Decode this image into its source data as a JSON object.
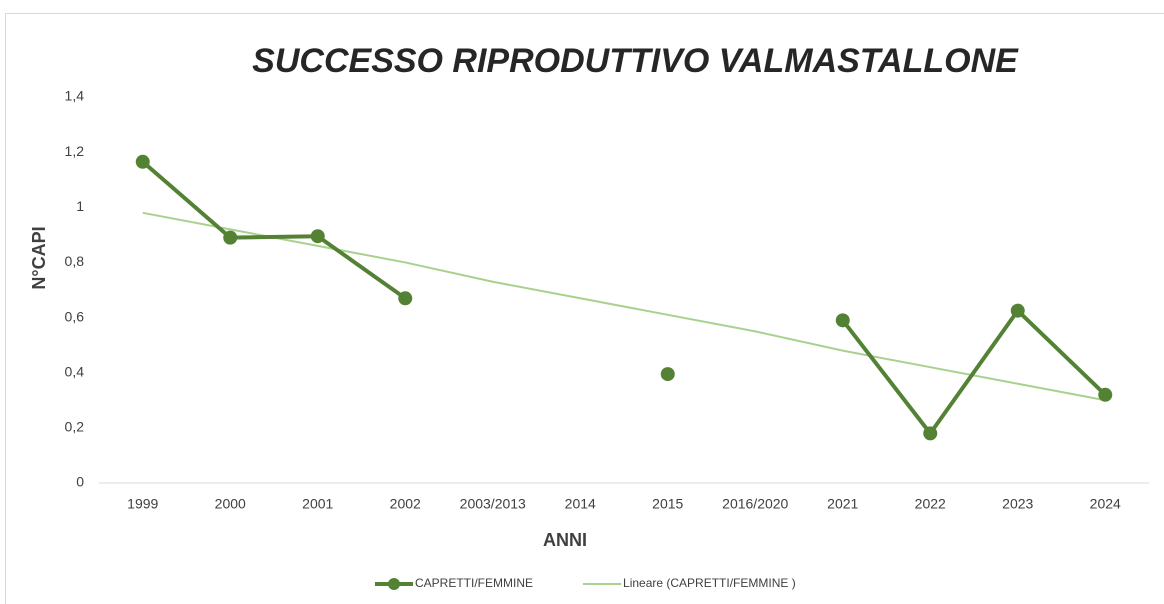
{
  "chart_data": {
    "type": "line",
    "title": "SUCCESSO RIPRODUTTIVO VALMASTALLONE",
    "x_label": "ANNI",
    "y_label": "N°CAPI",
    "categories": [
      "1999",
      "2000",
      "2001",
      "2002",
      "2003/2013",
      "2014",
      "2015",
      "2016/2020",
      "2021",
      "2022",
      "2023",
      "2024"
    ],
    "series": [
      {
        "name": "CAPRETTI/FEMMINE",
        "color": "#548235",
        "markers": true,
        "line_width": 4,
        "values": [
          1.165,
          0.89,
          0.895,
          0.67,
          null,
          null,
          0.395,
          null,
          0.59,
          0.18,
          0.625,
          0.32
        ]
      },
      {
        "name": "Lineare (CAPRETTI/FEMMINE )",
        "color": "#a9d18e",
        "markers": false,
        "line_width": 2,
        "values": [
          0.98,
          0.92,
          0.86,
          0.8,
          0.73,
          0.67,
          0.61,
          0.55,
          0.48,
          0.42,
          0.36,
          0.3
        ]
      }
    ],
    "ylim": [
      0,
      1.4
    ],
    "yticks": [
      0,
      {
        "value": 0.2,
        "label": "0,2"
      },
      {
        "value": 0.4,
        "label": "0,4"
      },
      {
        "value": 0.6,
        "label": "0,6"
      },
      {
        "value": 0.8,
        "label": "0,8"
      },
      1,
      {
        "value": 1.2,
        "label": "1,2"
      },
      {
        "value": 1.4,
        "label": "1,4"
      }
    ],
    "grid": false,
    "legend": "bottom"
  }
}
